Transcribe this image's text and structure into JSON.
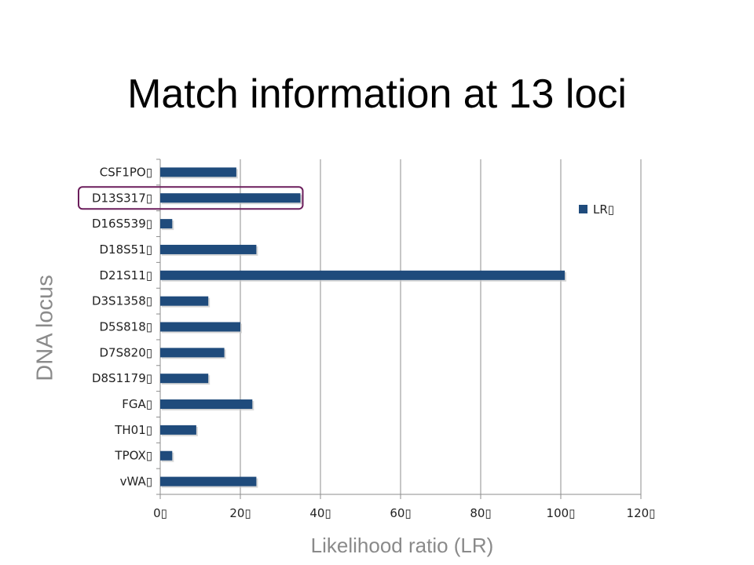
{
  "title": "Match information at 13 loci",
  "chart_data": {
    "type": "bar",
    "orientation": "horizontal",
    "title": "Match information at 13 loci",
    "xlabel": "Likelihood ratio (LR)",
    "ylabel": "DNA locus",
    "categories": [
      "CSF1PO",
      "D13S317",
      "D16S539",
      "D18S51",
      "D21S11",
      "D3S1358",
      "D5S818",
      "D7S820",
      "D8S1179",
      "FGA",
      "TH01",
      "TPOX",
      "vWA"
    ],
    "series": [
      {
        "name": "LR",
        "values": [
          19,
          35,
          3,
          24,
          101,
          12,
          20,
          16,
          12,
          23,
          9,
          3,
          24
        ]
      }
    ],
    "xlim": [
      0,
      120
    ],
    "xticks": [
      0,
      20,
      40,
      60,
      80,
      100,
      120
    ],
    "grid": "vertical",
    "legend_position": "right",
    "highlighted_category": "D13S317",
    "colors": {
      "bar": "#1f4b7c",
      "highlight": "#6b1d5b",
      "grid": "#8c8c8c"
    }
  }
}
